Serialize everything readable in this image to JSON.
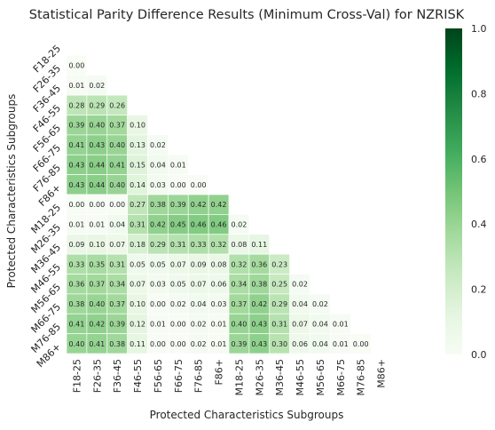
{
  "chart_data": {
    "type": "heatmap",
    "title": "Statistical Parity Difference Results (Minimum Cross-Val) for NZRISK",
    "xlabel": "Protected Characteristics Subgroups",
    "ylabel": "Protected Characteristics Subgroups",
    "categories": [
      "F18-25",
      "F26-35",
      "F36-45",
      "F46-55",
      "F56-65",
      "F66-75",
      "F76-85",
      "F86+",
      "M18-25",
      "M26-35",
      "M36-45",
      "M46-55",
      "M56-65",
      "M66-75",
      "M76-85",
      "M86+"
    ],
    "mask": "upper-triangle-and-diagonal",
    "matrix": [
      [],
      [
        0.0
      ],
      [
        0.01,
        0.02
      ],
      [
        0.28,
        0.29,
        0.26
      ],
      [
        0.39,
        0.4,
        0.37,
        0.1
      ],
      [
        0.41,
        0.43,
        0.4,
        0.13,
        0.02
      ],
      [
        0.43,
        0.44,
        0.41,
        0.15,
        0.04,
        0.01
      ],
      [
        0.43,
        0.44,
        0.4,
        0.14,
        0.03,
        0.0,
        0.0
      ],
      [
        0.0,
        0.0,
        0.0,
        0.27,
        0.38,
        0.39,
        0.42,
        0.42
      ],
      [
        0.01,
        0.01,
        0.04,
        0.31,
        0.42,
        0.45,
        0.46,
        0.46,
        0.02
      ],
      [
        0.09,
        0.1,
        0.07,
        0.18,
        0.29,
        0.31,
        0.33,
        0.32,
        0.08,
        0.11
      ],
      [
        0.33,
        0.35,
        0.31,
        0.05,
        0.05,
        0.07,
        0.09,
        0.08,
        0.32,
        0.36,
        0.23
      ],
      [
        0.36,
        0.37,
        0.34,
        0.07,
        0.03,
        0.05,
        0.07,
        0.06,
        0.34,
        0.38,
        0.25,
        0.02
      ],
      [
        0.38,
        0.4,
        0.37,
        0.1,
        0.0,
        0.02,
        0.04,
        0.03,
        0.37,
        0.42,
        0.29,
        0.04,
        0.02
      ],
      [
        0.41,
        0.42,
        0.39,
        0.12,
        0.01,
        0.0,
        0.02,
        0.01,
        0.4,
        0.43,
        0.31,
        0.07,
        0.04,
        0.01
      ],
      [
        0.4,
        0.41,
        0.38,
        0.11,
        0.0,
        0.0,
        0.02,
        0.01,
        0.39,
        0.43,
        0.3,
        0.06,
        0.04,
        0.01,
        0.0
      ]
    ],
    "colorbar": {
      "colormap": "Greens",
      "range": [
        0.0,
        1.0
      ],
      "ticks": [
        "0.0",
        "0.2",
        "0.4",
        "0.6",
        "0.8",
        "1.0"
      ]
    },
    "value_format": "2 decimals"
  }
}
